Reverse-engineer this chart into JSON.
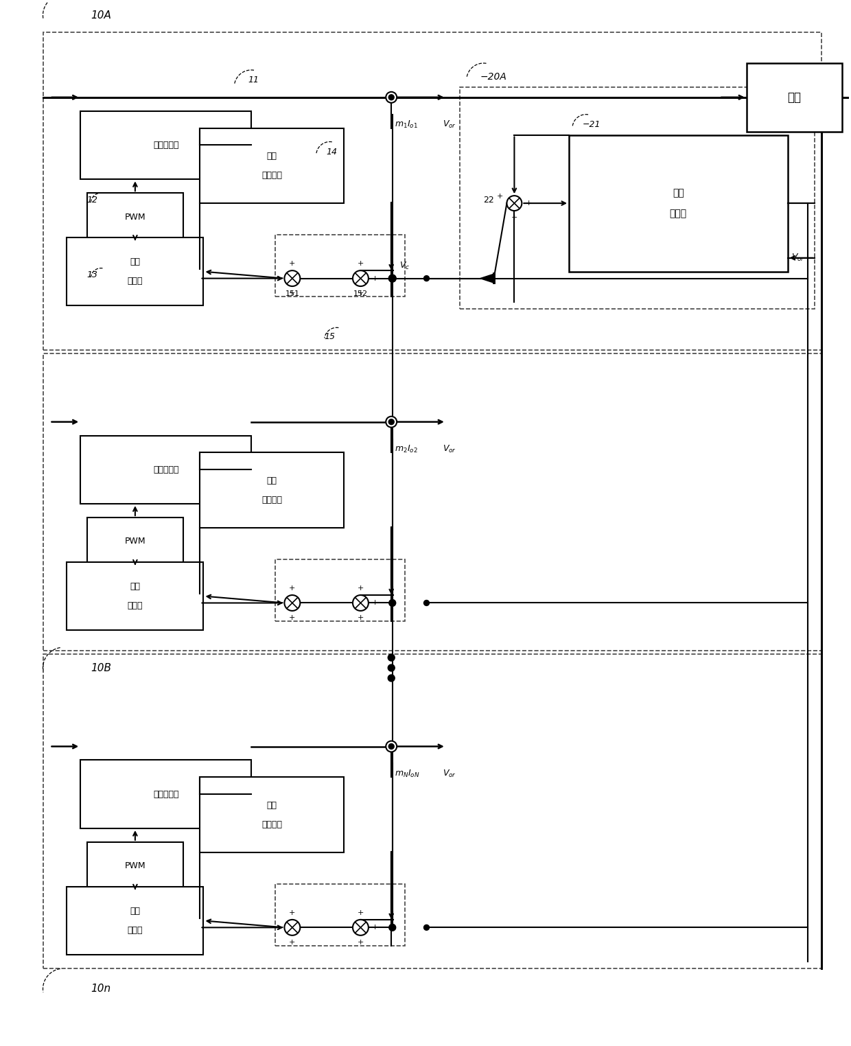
{
  "fig_width": 12.4,
  "fig_height": 15.24,
  "bg_color": "#ffffff",
  "line_color": "#000000",
  "labels": {
    "load": "负载",
    "pwr_conv": "电源转换器",
    "pwm": "PWM",
    "volt_feed1": "电压",
    "volt_feed2": "反馈单元",
    "volt_ctrl1": "电压",
    "volt_ctrl2": "控制器"
  }
}
